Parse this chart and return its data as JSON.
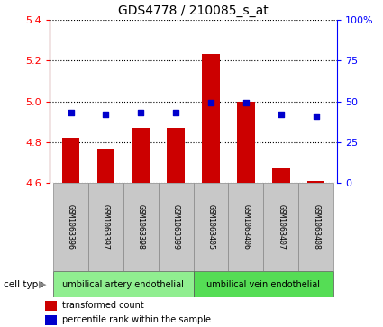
{
  "title": "GDS4778 / 210085_s_at",
  "samples": [
    "GSM1063396",
    "GSM1063397",
    "GSM1063398",
    "GSM1063399",
    "GSM1063405",
    "GSM1063406",
    "GSM1063407",
    "GSM1063408"
  ],
  "transformed_count": [
    4.82,
    4.77,
    4.87,
    4.87,
    5.23,
    5.0,
    4.67,
    4.61
  ],
  "percentile_rank": [
    43,
    42,
    43,
    43,
    49,
    49,
    42,
    41
  ],
  "ylim_left": [
    4.6,
    5.4
  ],
  "ylim_right": [
    0,
    100
  ],
  "yticks_left": [
    4.6,
    4.8,
    5.0,
    5.2,
    5.4
  ],
  "yticks_right": [
    0,
    25,
    50,
    75,
    100
  ],
  "cell_type_groups": [
    {
      "label": "umbilical artery endothelial",
      "start": 0,
      "end": 3,
      "color": "#90EE90"
    },
    {
      "label": "umbilical vein endothelial",
      "start": 4,
      "end": 7,
      "color": "#55DD55"
    }
  ],
  "bar_color": "#CC0000",
  "dot_color": "#0000CC",
  "bar_width": 0.5,
  "background_color": "#ffffff",
  "label_bg_color": "#C8C8C8",
  "cell_type_label": "cell type"
}
